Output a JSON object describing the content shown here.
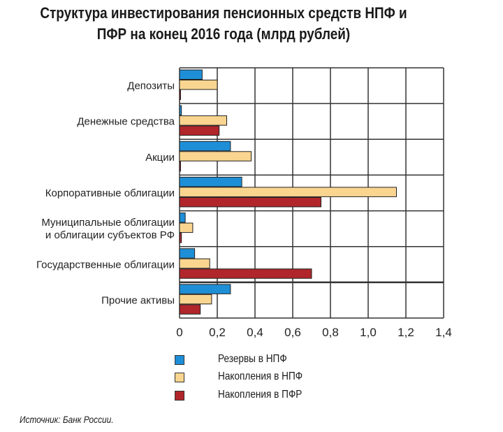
{
  "chart_data": {
    "type": "bar",
    "orientation": "horizontal",
    "title": "Структура инвестирования пенсионных средств НПФ и ПФР на конец 2016 года (млрд рублей)",
    "categories": [
      "Депозиты",
      "Денежные средства",
      "Акции",
      "Корпоративные облигации",
      "Муниципальные облигации\nи облигации субъектов РФ",
      "Государственные облигации",
      "Прочие активы"
    ],
    "series": [
      {
        "name": "Резервы в НПФ",
        "color": "#1e8fd6",
        "values": [
          0.12,
          0.01,
          0.27,
          0.33,
          0.03,
          0.08,
          0.27
        ]
      },
      {
        "name": "Накопления в НПФ",
        "color": "#fad590",
        "values": [
          0.2,
          0.25,
          0.38,
          1.15,
          0.07,
          0.16,
          0.17
        ]
      },
      {
        "name": "Накопления в ПФР",
        "color": "#b0262b",
        "values": [
          0.0,
          0.21,
          0.0,
          0.75,
          0.01,
          0.7,
          0.11
        ]
      }
    ],
    "xlim": [
      0,
      1.4
    ],
    "xticks": [
      "0",
      "0,2",
      "0,4",
      "0,6",
      "0,8",
      "1,0",
      "1,2",
      "1,4"
    ],
    "grid": true,
    "legend_position": "bottom"
  },
  "title_line1": "Структура инвестирования пенсионных средств НПФ и",
  "title_line2": "ПФР на конец 2016 года (млрд рублей)",
  "source": "Источник: Банк России."
}
